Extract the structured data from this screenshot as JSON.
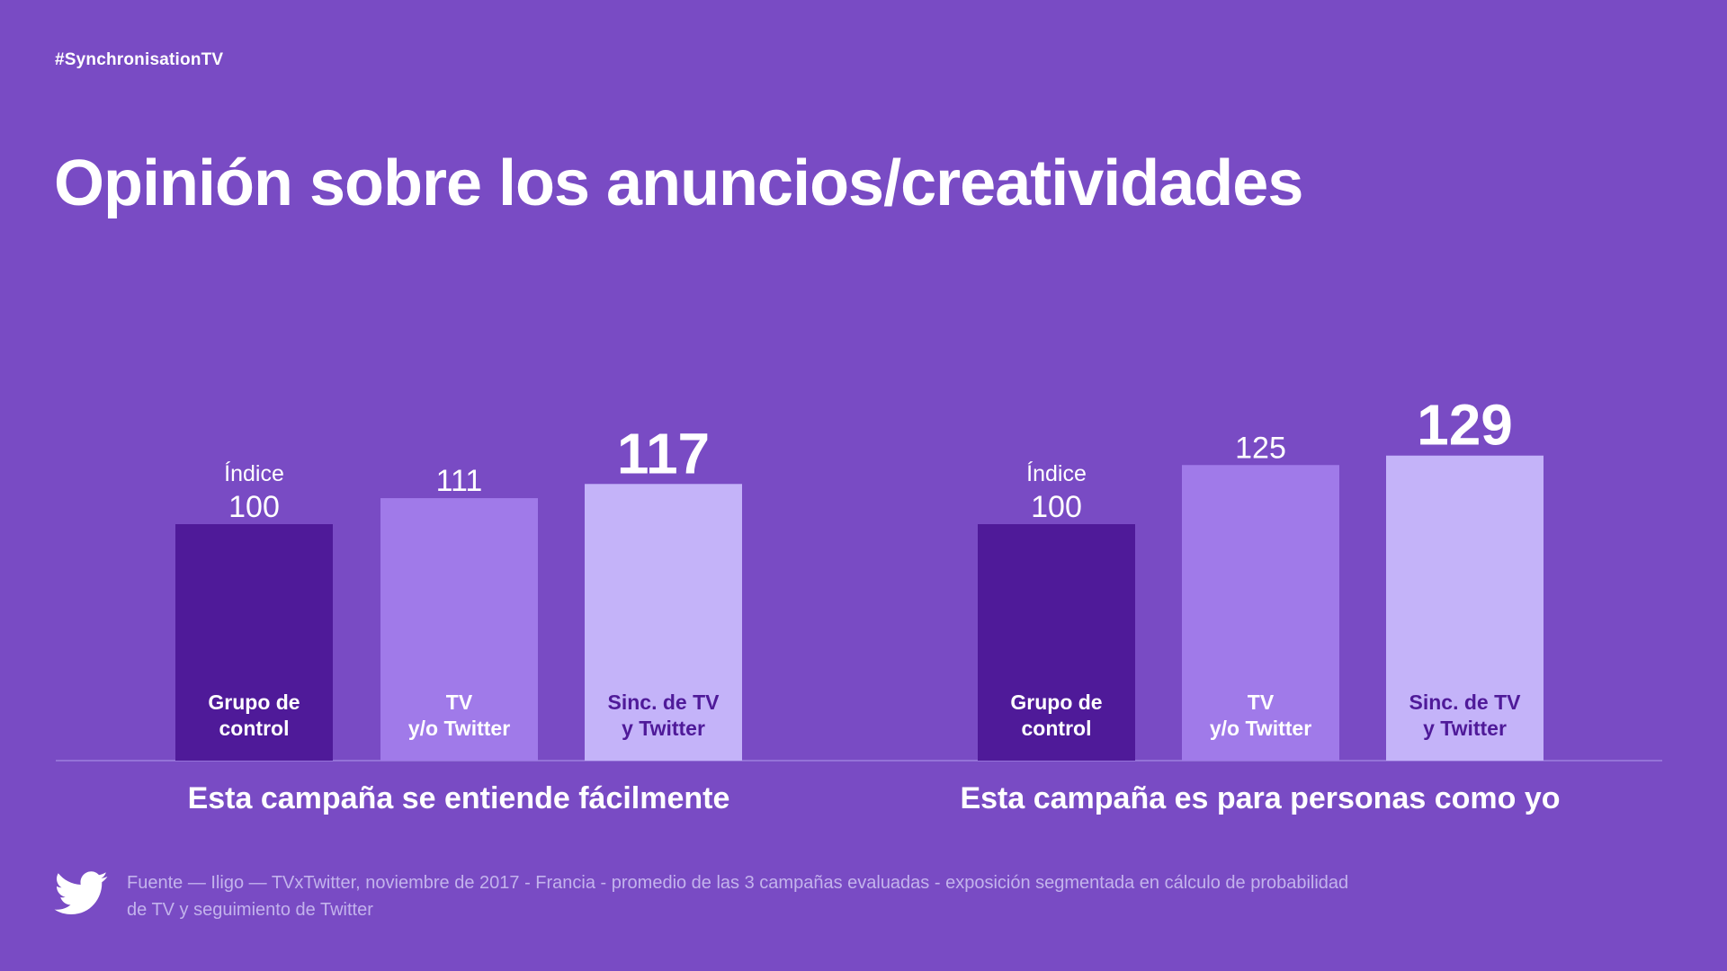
{
  "hashtag": "#SynchronisationTV",
  "title": "Opinión sobre los anuncios/creatividades",
  "footer": {
    "line1": "Fuente — Iligo — TVxTwitter, noviembre de 2017 - Francia - promedio de las 3 campañas evaluadas - exposición segmentada en cálculo de probabilidad",
    "line2": "de TV y seguimiento de Twitter"
  },
  "logo_icon": "twitter-bird-icon",
  "colors": {
    "background": "#794bc4",
    "control": "#4f1a99",
    "tv_twitter": "#a07ae9",
    "sync": "#c4b3f9",
    "footer_text": "#c3b3ec"
  },
  "chart_data": [
    {
      "type": "bar",
      "xlabel": "Esta campaña se entiende fácilmente",
      "categories": [
        "Grupo de\ncontrol",
        "TV\ny/o Twitter",
        "Sinc. de TV\ny Twitter"
      ],
      "values": [
        100,
        111,
        117
      ],
      "value_prefix": [
        "Índice",
        "",
        ""
      ],
      "highlight": [
        false,
        false,
        true
      ]
    },
    {
      "type": "bar",
      "xlabel": "Esta campaña es para personas como yo",
      "categories": [
        "Grupo de\ncontrol",
        "TV\ny/o Twitter",
        "Sinc. de TV\ny Twitter"
      ],
      "values": [
        100,
        125,
        129
      ],
      "value_prefix": [
        "Índice",
        "",
        ""
      ],
      "highlight": [
        false,
        false,
        true
      ]
    }
  ]
}
